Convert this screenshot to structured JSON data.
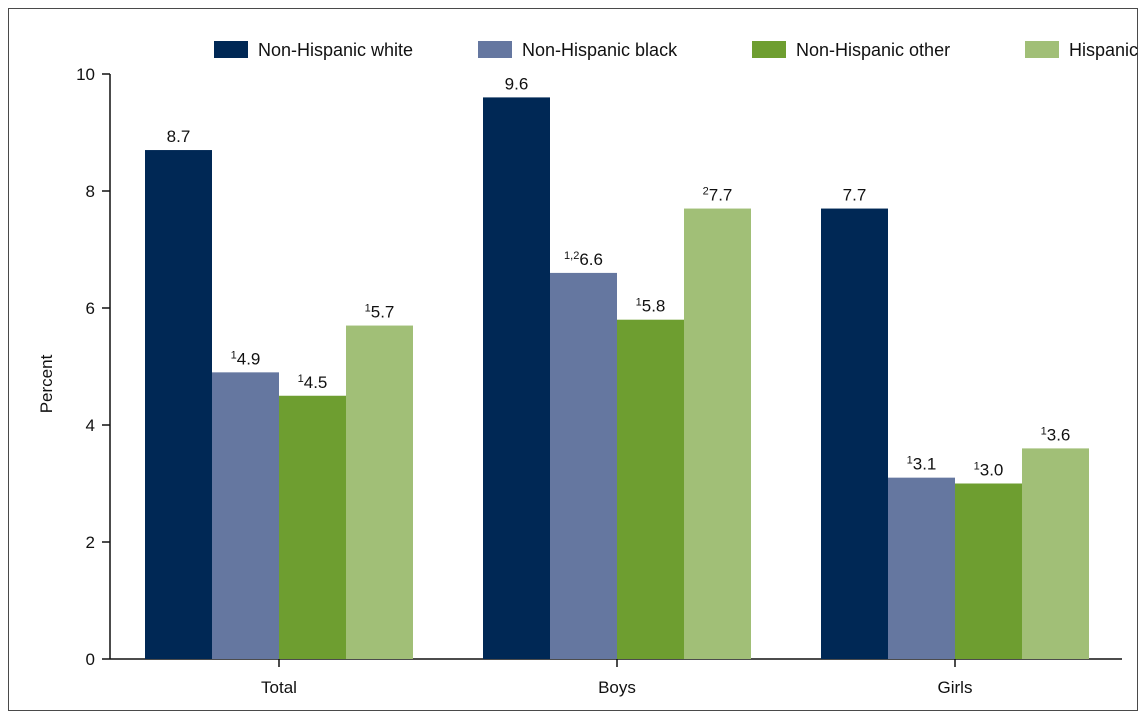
{
  "chart_data": {
    "type": "bar",
    "title": "",
    "xlabel": "",
    "ylabel": "Percent",
    "ylim": [
      0,
      10
    ],
    "yticks": [
      0,
      2,
      4,
      6,
      8,
      10
    ],
    "grid": false,
    "legend_position": "top",
    "categories": [
      "Total",
      "Boys",
      "Girls"
    ],
    "series": [
      {
        "name": "Non-Hispanic white",
        "color": "#002855",
        "values": [
          8.7,
          9.6,
          7.7
        ],
        "footnotes": [
          "",
          "",
          ""
        ]
      },
      {
        "name": "Non-Hispanic black",
        "color": "#6577a0",
        "values": [
          4.9,
          6.6,
          3.1
        ],
        "footnotes": [
          "1",
          "1,2",
          "1"
        ]
      },
      {
        "name": "Non-Hispanic other",
        "color": "#6e9e30",
        "values": [
          4.5,
          5.8,
          3.0
        ],
        "footnotes": [
          "1",
          "1",
          "1"
        ]
      },
      {
        "name": "Hispanic",
        "color": "#a1bf77",
        "values": [
          5.7,
          7.7,
          3.6
        ],
        "footnotes": [
          "1",
          "2",
          "1"
        ]
      }
    ]
  }
}
